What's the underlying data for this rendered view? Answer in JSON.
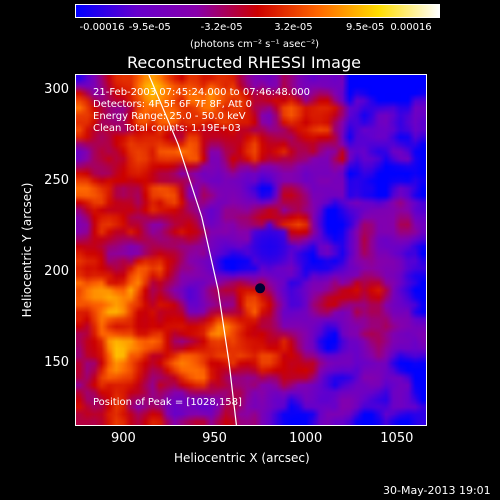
{
  "colorbar": {
    "tick_labels": [
      "-0.00016",
      "-9.5e-05",
      "-3.2e-05",
      "3.2e-05",
      "9.5e-05",
      "0.00016"
    ],
    "units": "(photons cm⁻² s⁻¹ asec⁻²)",
    "colors": [
      "#0000ff",
      "#6600cc",
      "#8800aa",
      "#cc0000",
      "#ff6600",
      "#ffdd00",
      "#ffffff"
    ]
  },
  "chart_data": {
    "type": "heatmap",
    "title": "Reconstructed RHESSI Image",
    "xlabel": "Heliocentric X (arcsec)",
    "ylabel": "Heliocentric Y (arcsec)",
    "xlim": [
      874,
      1066
    ],
    "ylim": [
      116,
      308
    ],
    "xticks": [
      900,
      950,
      1000,
      1050
    ],
    "yticks": [
      150,
      200,
      250,
      300
    ],
    "value_range": [
      -0.00016,
      0.00016
    ],
    "peak": [
      1028,
      158
    ],
    "limb_curve": [
      [
        914,
        308
      ],
      [
        930,
        270
      ],
      [
        943,
        230
      ],
      [
        952,
        190
      ],
      [
        958,
        150
      ],
      [
        962,
        116
      ]
    ]
  },
  "overlay": {
    "time_range": "21-Feb-2003 07:45:24.000 to 07:46:48.000",
    "detectors": "Detectors: 4F 5F 6F 7F 8F, Att 0",
    "energy": "Energy Range: 25.0 - 50.0 keV",
    "clean": "Clean    Total counts: 1.19E+03",
    "peak_text": "Position of Peak = [1028,158]"
  },
  "footer": {
    "timestamp": "30-May-2013 19:01"
  }
}
